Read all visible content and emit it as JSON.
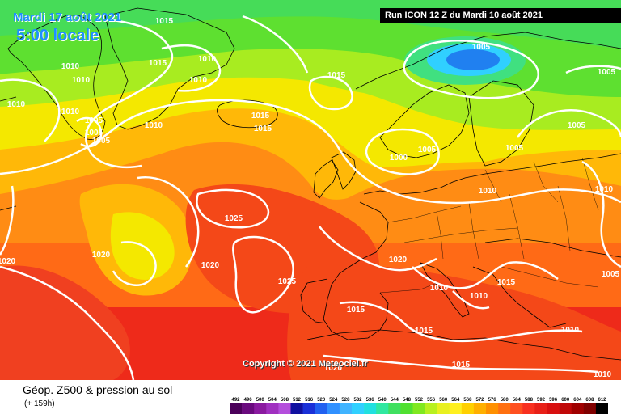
{
  "header": {
    "date_title": "Mardi 17 août 2021",
    "time_title": "5:00 locale",
    "run_banner": "Run ICON 12 Z du Mardi 10 août 2021"
  },
  "footer": {
    "title": "Géop. Z500 & pression au sol",
    "forecast_hour": "(+ 159h)",
    "copyright": "Copyright © 2021 Meteociel.fr"
  },
  "map": {
    "parameter": "geopotential height Z500 (colour) and surface pressure isobars (white lines)",
    "isobar_labels": [
      {
        "text": "1015",
        "near": "south of Greenland tip"
      },
      {
        "text": "1010",
        "near": "Greenland west"
      },
      {
        "text": "1010",
        "near": "Greenland west"
      },
      {
        "text": "1010",
        "near": "far west edge"
      },
      {
        "text": "1010",
        "near": "Greenland southwest"
      },
      {
        "text": "1005",
        "near": "Greenland south coast"
      },
      {
        "text": "1005",
        "near": "Greenland south coast"
      },
      {
        "text": "1005",
        "near": "Greenland south coast"
      },
      {
        "text": "1015",
        "near": "Greenland east"
      },
      {
        "text": "1010",
        "near": "Greenland east"
      },
      {
        "text": "1010",
        "near": "Greenland east"
      },
      {
        "text": "1010",
        "near": "Denmark Strait"
      },
      {
        "text": "1015",
        "near": "Iceland"
      },
      {
        "text": "1015",
        "near": "Iceland south"
      },
      {
        "text": "1015",
        "near": "Norwegian Sea"
      },
      {
        "text": "1005",
        "near": "low over Barents Sea"
      },
      {
        "text": "1005",
        "near": "northeast corner"
      },
      {
        "text": "1005",
        "near": "Finland"
      },
      {
        "text": "1005",
        "near": "Sweden"
      },
      {
        "text": "1005",
        "near": "North Sea low"
      },
      {
        "text": "1000",
        "near": "North Sea low centre"
      },
      {
        "text": "1010",
        "near": "Baltic"
      },
      {
        "text": "1010",
        "near": "east edge"
      },
      {
        "text": "1025",
        "near": "Azores high"
      },
      {
        "text": "1020",
        "near": "mid Atlantic"
      },
      {
        "text": "1020",
        "near": "west edge"
      },
      {
        "text": "1020",
        "near": "Atlantic high"
      },
      {
        "text": "1025",
        "near": "Atlantic high south"
      },
      {
        "text": "1020",
        "near": "France"
      },
      {
        "text": "1015",
        "near": "Iberia"
      },
      {
        "text": "1010",
        "near": "Italy"
      },
      {
        "text": "1010",
        "near": "southern Italy"
      },
      {
        "text": "1015",
        "near": "Balkans"
      },
      {
        "text": "1005",
        "near": "east edge"
      },
      {
        "text": "1015",
        "near": "Mediterranean"
      },
      {
        "text": "1010",
        "near": "Greece"
      },
      {
        "text": "1015",
        "near": "North Africa"
      },
      {
        "text": "1010",
        "near": "southeast corner"
      },
      {
        "text": "1020",
        "near": "Morocco"
      }
    ]
  },
  "legend": {
    "ticks": [
      "492",
      "496",
      "500",
      "504",
      "508",
      "512",
      "516",
      "520",
      "524",
      "528",
      "532",
      "536",
      "540",
      "544",
      "548",
      "552",
      "556",
      "560",
      "564",
      "568",
      "572",
      "576",
      "580",
      "584",
      "588",
      "592",
      "596",
      "600",
      "604",
      "608",
      "612"
    ],
    "colors": [
      "#4b005a",
      "#6a0a7e",
      "#8a1aa0",
      "#a030c0",
      "#b44edc",
      "#1010a0",
      "#1a30d8",
      "#2060f0",
      "#3090ff",
      "#40b4ff",
      "#30d0ff",
      "#20e0e0",
      "#30e8a0",
      "#40e060",
      "#50e030",
      "#80e820",
      "#b8f020",
      "#e8f020",
      "#fff020",
      "#ffd000",
      "#ffb000",
      "#ff9000",
      "#ff7010",
      "#ff5020",
      "#f83020",
      "#e82018",
      "#d81010",
      "#c00808",
      "#a00000",
      "#800000",
      "#000000"
    ]
  }
}
